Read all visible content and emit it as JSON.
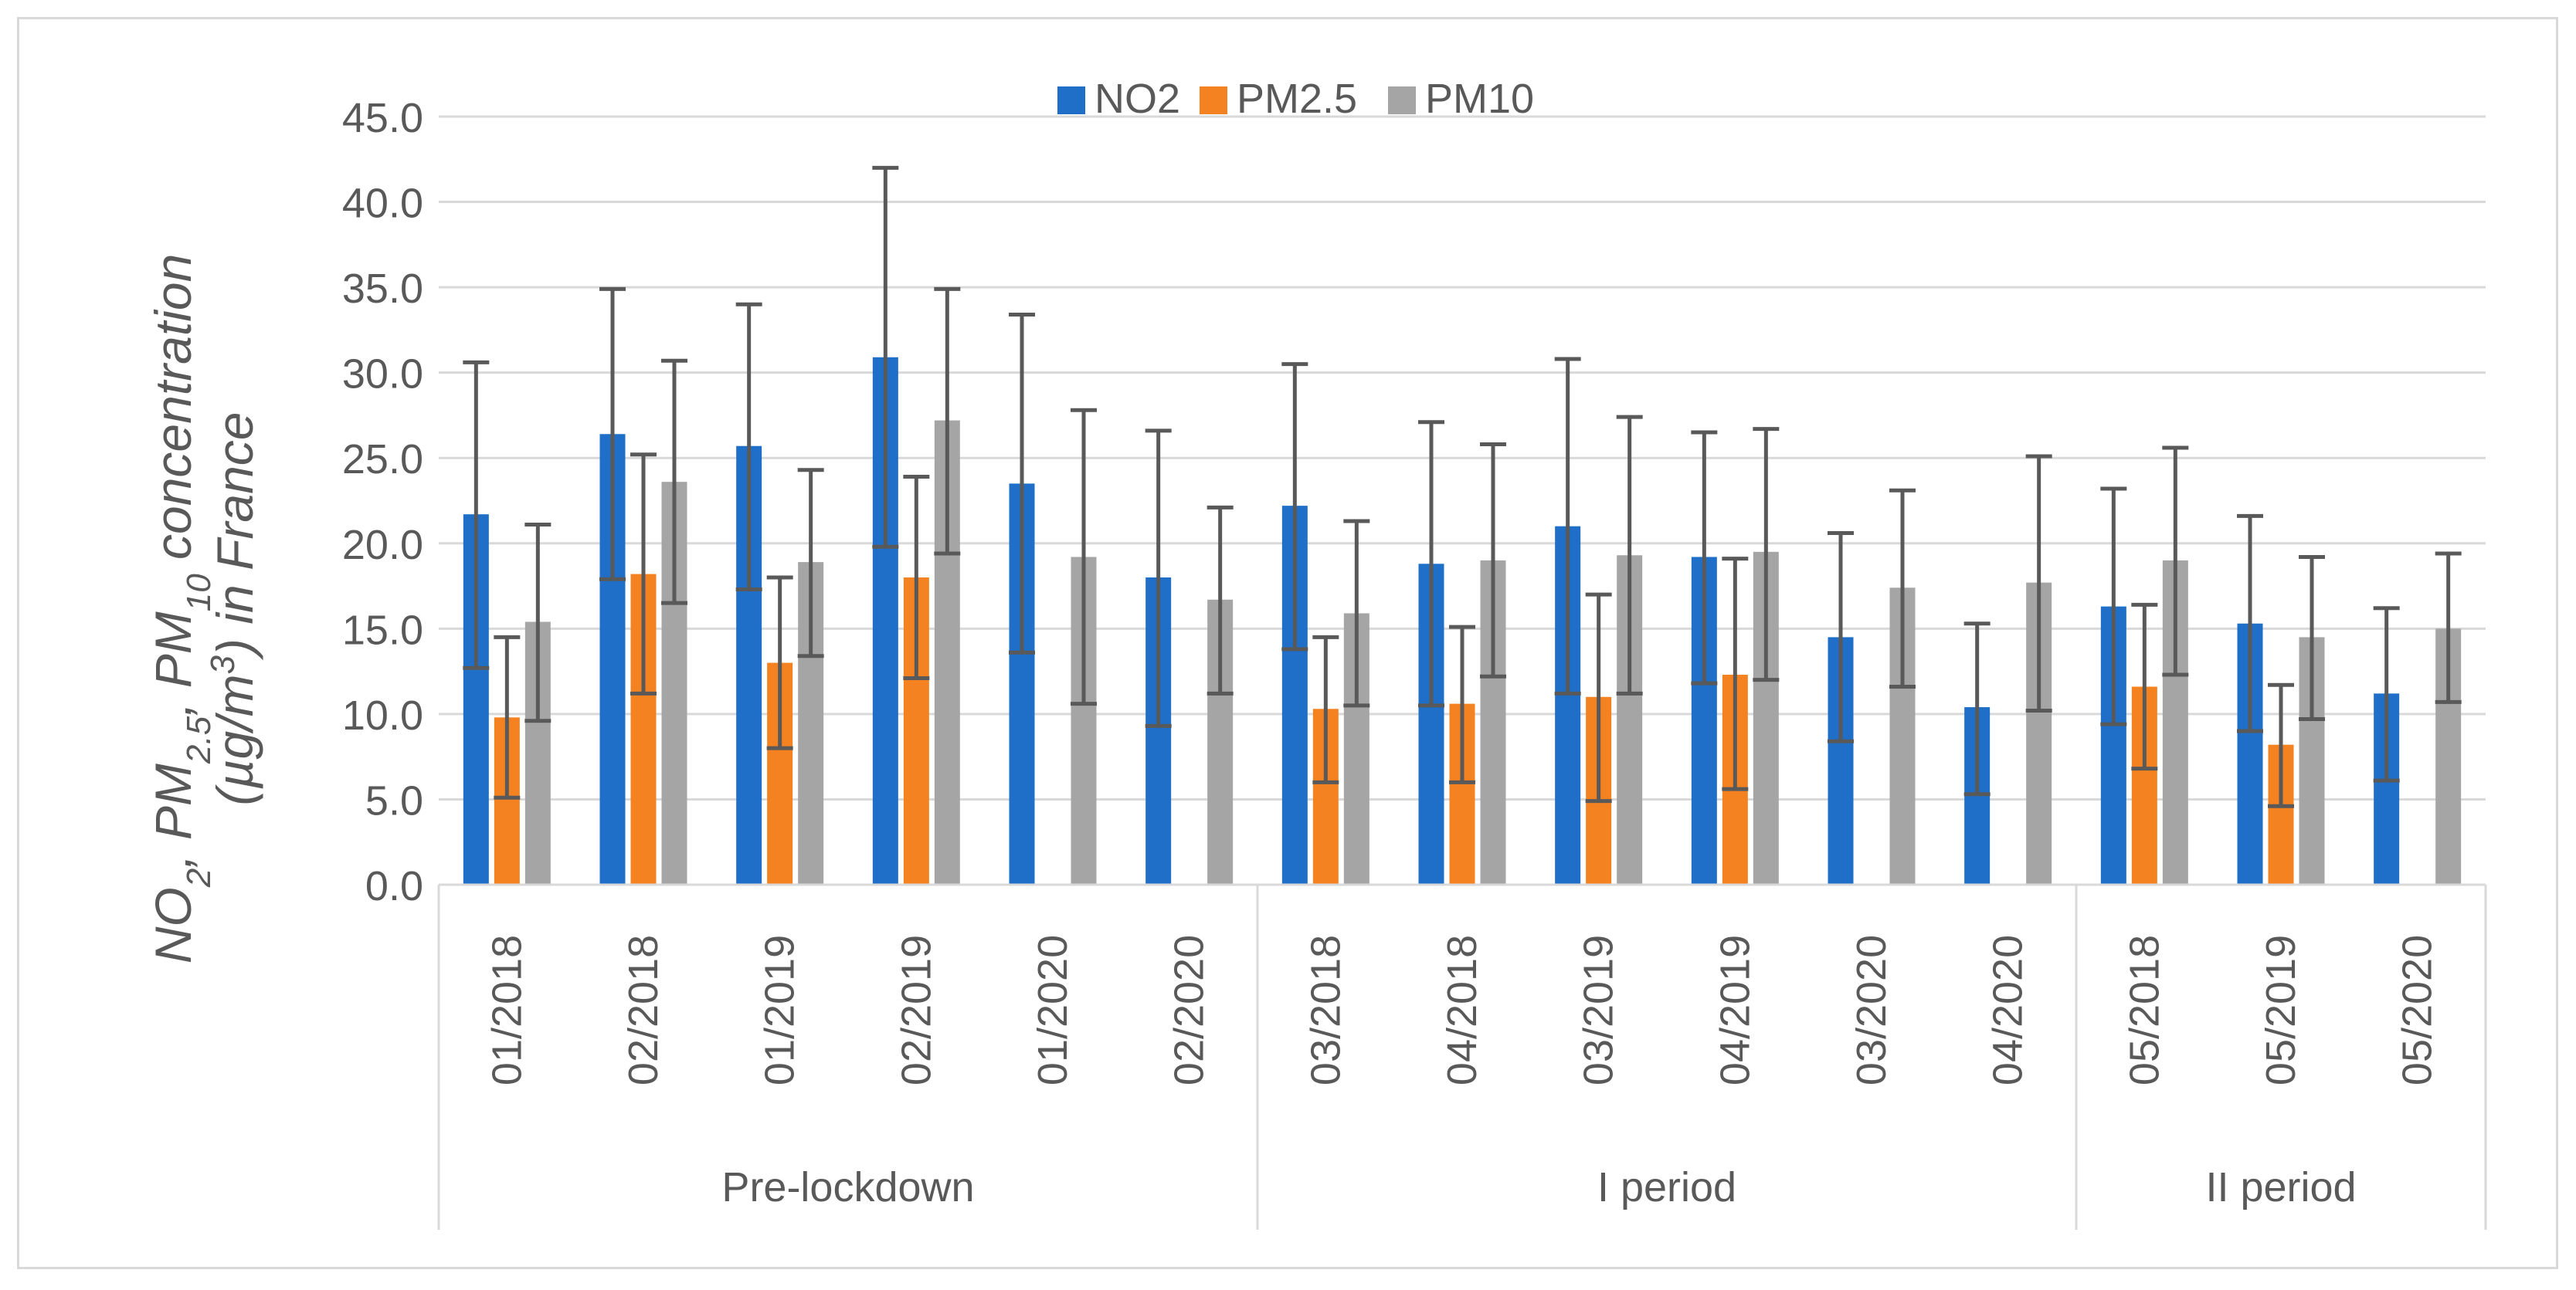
{
  "chart_data": {
    "type": "bar",
    "title": "",
    "ylabel_parts": [
      {
        "text": "NO",
        "sub": false
      },
      {
        "text": "2",
        "sub": true
      },
      {
        "text": ", PM",
        "sub": false
      },
      {
        "text": "2.5",
        "sub": true
      },
      {
        "text": ", PM",
        "sub": false
      },
      {
        "text": "10",
        "sub": true
      },
      {
        "text": " concentration",
        "sub": false
      }
    ],
    "ylabel_line2_parts": [
      {
        "text": "(µg/m",
        "sup": false
      },
      {
        "text": "3",
        "sup": true
      },
      {
        "text": ") in France",
        "sup": false
      }
    ],
    "ylim": [
      0,
      45
    ],
    "ytick_labels": [
      "0.0",
      "5.0",
      "10.0",
      "15.0",
      "20.0",
      "25.0",
      "30.0",
      "35.0",
      "40.0",
      "45.0"
    ],
    "grid": true,
    "legend_position": "top-center",
    "categories": [
      "01/2018",
      "02/2018",
      "01/2019",
      "02/2019",
      "01/2020",
      "02/2020",
      "03/2018",
      "04/2018",
      "03/2019",
      "04/2019",
      "03/2020",
      "04/2020",
      "05/2018",
      "05/2019",
      "05/2020"
    ],
    "groups": [
      {
        "label": "Pre-lockdown",
        "count": 6
      },
      {
        "label": "I period",
        "count": 6
      },
      {
        "label": "II period",
        "count": 3
      }
    ],
    "series": [
      {
        "name": "NO2",
        "color": "#1f6fc8",
        "values": [
          21.7,
          26.4,
          25.7,
          30.9,
          23.5,
          18.0,
          22.2,
          18.8,
          21.0,
          19.2,
          14.5,
          10.4,
          16.3,
          15.3,
          11.2
        ],
        "err_low": [
          12.7,
          17.9,
          17.3,
          19.8,
          13.6,
          9.3,
          13.8,
          10.5,
          11.2,
          11.8,
          8.4,
          5.3,
          9.4,
          9.0,
          6.1
        ],
        "err_high": [
          30.6,
          34.9,
          34.0,
          42.0,
          33.4,
          26.6,
          30.5,
          27.1,
          30.8,
          26.5,
          20.6,
          15.3,
          23.2,
          21.6,
          16.2
        ]
      },
      {
        "name": "PM2.5",
        "color": "#f58220",
        "values": [
          9.8,
          18.2,
          13.0,
          18.0,
          null,
          null,
          10.3,
          10.6,
          11.0,
          12.3,
          null,
          null,
          11.6,
          8.2,
          null
        ],
        "err_low": [
          5.1,
          11.2,
          8.0,
          12.1,
          null,
          null,
          6.0,
          6.0,
          4.9,
          5.6,
          null,
          null,
          6.8,
          4.6,
          null
        ],
        "err_high": [
          14.5,
          25.2,
          18.0,
          23.9,
          null,
          null,
          14.5,
          15.1,
          17.0,
          19.1,
          null,
          null,
          16.4,
          11.7,
          null
        ]
      },
      {
        "name": "PM10",
        "color": "#a5a5a5",
        "values": [
          15.4,
          23.6,
          18.9,
          27.2,
          19.2,
          16.7,
          15.9,
          19.0,
          19.3,
          19.5,
          17.4,
          17.7,
          19.0,
          14.5,
          15.0
        ],
        "err_low": [
          9.6,
          16.5,
          13.4,
          19.4,
          10.6,
          11.2,
          10.5,
          12.2,
          11.2,
          12.0,
          11.6,
          10.2,
          12.3,
          9.7,
          10.7
        ],
        "err_high": [
          21.1,
          30.7,
          24.3,
          34.9,
          27.8,
          22.1,
          21.3,
          25.8,
          27.4,
          26.7,
          23.1,
          25.1,
          25.6,
          19.2,
          19.4
        ]
      }
    ]
  }
}
